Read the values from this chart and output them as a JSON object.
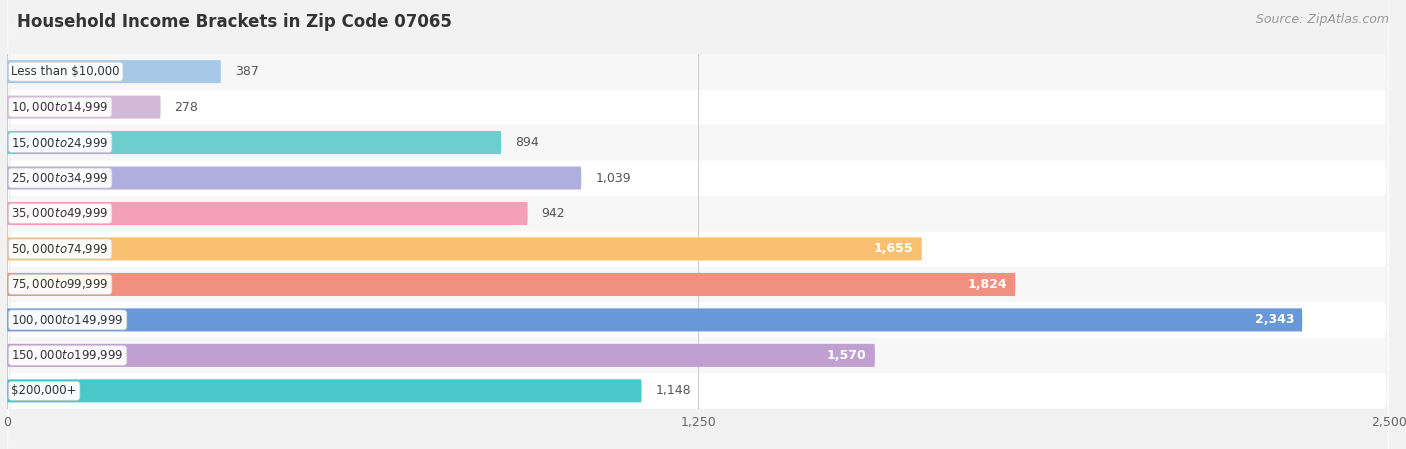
{
  "title": "Household Income Brackets in Zip Code 07065",
  "source": "Source: ZipAtlas.com",
  "categories": [
    "Less than $10,000",
    "$10,000 to $14,999",
    "$15,000 to $24,999",
    "$25,000 to $34,999",
    "$35,000 to $49,999",
    "$50,000 to $74,999",
    "$75,000 to $99,999",
    "$100,000 to $149,999",
    "$150,000 to $199,999",
    "$200,000+"
  ],
  "values": [
    387,
    278,
    894,
    1039,
    942,
    1655,
    1824,
    2343,
    1570,
    1148
  ],
  "bar_colors": [
    "#a8c8e8",
    "#d4b8d8",
    "#6ecece",
    "#b0aede",
    "#f4a0b8",
    "#f8c070",
    "#f09080",
    "#6898d8",
    "#c0a0d0",
    "#48c8c8"
  ],
  "row_colors": [
    "#f7f7f7",
    "#efefef"
  ],
  "xlim": [
    0,
    2500
  ],
  "xticks": [
    0,
    1250,
    2500
  ],
  "label_inside_threshold": 1300,
  "bg_color": "#f2f2f2",
  "title_fontsize": 12,
  "source_fontsize": 9,
  "bar_label_fontsize": 9,
  "category_fontsize": 8.5,
  "bar_height": 0.65
}
